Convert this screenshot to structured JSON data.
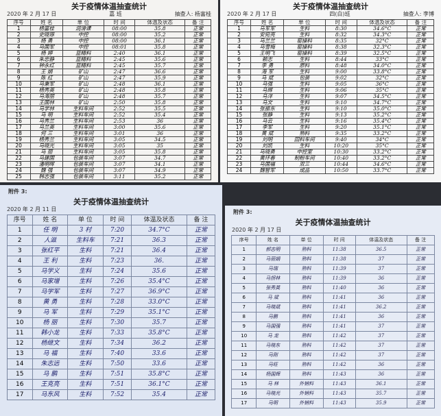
{
  "headers": [
    "序号",
    "姓 名",
    "单 位",
    "时 间",
    "体温及状态",
    "备 注"
  ],
  "sheets": [
    {
      "title": "关于疫情体温抽查统计",
      "date": "2020 年 2 月 17 日",
      "dept": "嘉 班",
      "inspector": "抽查人: 杨富桂",
      "attachment": "",
      "rows": [
        [
          "1",
          "杨富桂",
          "润滑课",
          "08:00",
          "35.8",
          "正常"
        ],
        [
          "2",
          "史晓琢",
          "中控",
          "08:00",
          "35.2",
          "正常"
        ],
        [
          "3",
          "杨 勇",
          "中控",
          "08:00",
          "36.1",
          "正常"
        ],
        [
          "4",
          "马国军",
          "中控",
          "08:01",
          "35.8",
          "正常"
        ],
        [
          "5",
          "杨 婷",
          "蓝精料",
          "2:40",
          "36.1",
          "正常"
        ],
        [
          "6",
          "朱忠静",
          "蓝精料",
          "2:45",
          "35.6",
          "正常"
        ],
        [
          "7",
          "钟永红",
          "蓝精料",
          "2:45",
          "35.7",
          "正常"
        ],
        [
          "8",
          "王 娟",
          "矿山",
          "2:47",
          "36.6",
          "正常"
        ],
        [
          "9",
          "陈 红",
          "矿山",
          "2:47",
          "35.9",
          "正常"
        ],
        [
          "10",
          "马秉军",
          "矿山",
          "2:48",
          "36.1",
          "正常"
        ],
        [
          "11",
          "杨秀英",
          "矿山",
          "2:48",
          "35.8",
          "正常"
        ],
        [
          "12",
          "马海丽",
          "矿山",
          "2:48",
          "35.7",
          "正常"
        ],
        [
          "13",
          "王国林",
          "矿山",
          "2:50",
          "35.8",
          "正常"
        ],
        [
          "14",
          "马学林",
          "生料车间",
          "2:52",
          "35.5",
          "正常"
        ],
        [
          "15",
          "马 明",
          "生料车间",
          "2:52",
          "35.4",
          "正常"
        ],
        [
          "16",
          "马秀兰",
          "生料车间",
          "2:53",
          "36",
          "正常"
        ],
        [
          "17",
          "马兰英",
          "生料车间",
          "3:00",
          "35.6",
          "正常"
        ],
        [
          "18",
          "何 三",
          "生料车间",
          "3:01",
          "36",
          "正常"
        ],
        [
          "19",
          "杨秀兰",
          "生料车间",
          "3:05",
          "34.5",
          "正常"
        ],
        [
          "20",
          "马晓光",
          "生料车间",
          "3:05",
          "35",
          "正常"
        ],
        [
          "21",
          "马 丽",
          "生料车间",
          "3:05",
          "35.8",
          "正常"
        ],
        [
          "22",
          "马建国",
          "包装车间",
          "3:07",
          "34.7",
          "正常"
        ],
        [
          "23",
          "潘明晖",
          "包装车间",
          "3:07",
          "34.1",
          "正常"
        ],
        [
          "24",
          "魏 强",
          "包装车间",
          "3:07",
          "34.9",
          "正常"
        ],
        [
          "25",
          "韩志强",
          "包装车间",
          "3:11",
          "35.2",
          "正常"
        ]
      ]
    },
    {
      "title": "关于疫情体温抽查统计",
      "date": "2020 年 2 月 17 日",
      "dept": "四(白)班",
      "inspector": "抽查人: 李博",
      "attachment": "",
      "rows": [
        [
          "1",
          "马军军",
          "生料",
          "8:30",
          "34.6°C",
          "正常"
        ],
        [
          "2",
          "安宛亮",
          "生料",
          "8:32",
          "34.3°C",
          "正常"
        ],
        [
          "3",
          "马兰兰",
          "窑操料",
          "8:35",
          "32°C",
          "正常"
        ],
        [
          "4",
          "马雪梅",
          "窑操料",
          "8:38",
          "32.3°C",
          "正常"
        ],
        [
          "5",
          "王明飞",
          "窑操料",
          "8:39",
          "32.5°C",
          "正常"
        ],
        [
          "6",
          "赖志",
          "生料",
          "8:44",
          "33°C",
          "正常"
        ],
        [
          "7",
          "李 勇",
          "原料",
          "8:48",
          "34.0°C",
          "正常"
        ],
        [
          "8",
          "海 军",
          "生料",
          "9:00",
          "33.8°C",
          "正常"
        ],
        [
          "9",
          "马 斌",
          "包装",
          "9:02",
          "32°C",
          "正常"
        ],
        [
          "10",
          "马强",
          "生料",
          "9:05",
          "36°C",
          "正常"
        ],
        [
          "11",
          "马辉",
          "生料",
          "9:06",
          "35°C",
          "正常"
        ],
        [
          "12",
          "马洋",
          "生料",
          "9:07",
          "34.5°C",
          "正常"
        ],
        [
          "13",
          "马文",
          "生料",
          "9:10",
          "34.7°C",
          "正常"
        ],
        [
          "14",
          "张振东",
          "生料",
          "9:10",
          "35.0°C",
          "正常"
        ],
        [
          "15",
          "张静",
          "生料",
          "9:13",
          "35.2°C",
          "正常"
        ],
        [
          "16",
          "马云",
          "生料",
          "9:16",
          "35.4°C",
          "正常"
        ],
        [
          "17",
          "李军",
          "生料",
          "9:20",
          "35.1°C",
          "正常"
        ],
        [
          "18",
          "黄 斌",
          "熟料",
          "9:35",
          "33.2°C",
          "正常"
        ],
        [
          "19",
          "刘明",
          "回料车间",
          "9:40",
          "34°C",
          "正常"
        ],
        [
          "20",
          "刘凯",
          "生料",
          "10:20",
          "35°C",
          "正常"
        ],
        [
          "21",
          "马晓勇",
          "中控室",
          "10:30",
          "33.2°C",
          "正常"
        ],
        [
          "22",
          "黄环春",
          "制粉车间",
          "10:40",
          "33.2°C",
          "正常"
        ],
        [
          "23",
          "马国福",
          "双三",
          "10:44",
          "34.6°C",
          "正常"
        ],
        [
          "24",
          "魏智军",
          "成品",
          "10:50",
          "33.7°C",
          "正常"
        ]
      ]
    },
    {
      "title": "关于疫情体温抽查统计",
      "date": "2020 年 2 月 11 日",
      "dept": "",
      "inspector": "",
      "attachment": "附件 3:",
      "rows": [
        [
          "1",
          "任 明",
          "3 村",
          "7:20",
          "34.7°C",
          "正常"
        ],
        [
          "2",
          "人滋",
          "生料车",
          "7:21",
          "36.3",
          "正常"
        ],
        [
          "3",
          "张红平",
          "生料",
          "7:21",
          "36.4",
          "正常"
        ],
        [
          "4",
          "王 利",
          "生料",
          "7:23",
          "36.",
          "正常"
        ],
        [
          "5",
          "马学义",
          "生料",
          "7:24",
          "35.6",
          "正常"
        ],
        [
          "6",
          "马家增",
          "生料",
          "7:26",
          "35.4°C",
          "正常"
        ],
        [
          "7",
          "马学军",
          "生料",
          "7:27",
          "36.9°C",
          "正常"
        ],
        [
          "8",
          "黄 勇",
          "生料",
          "7:28",
          "33.0°C",
          "正常"
        ],
        [
          "9",
          "马 军",
          "生料",
          "7:29",
          "35.1°C",
          "正常"
        ],
        [
          "10",
          "杨 丽",
          "生料",
          "7:30",
          "35.7",
          "正常"
        ],
        [
          "11",
          "韩小龙",
          "生料",
          "7:33",
          "35.8°C",
          "正常"
        ],
        [
          "12",
          "杨继文",
          "生料",
          "7:34",
          "36.2",
          "正常"
        ],
        [
          "13",
          "马 福",
          "生料",
          "7:40",
          "33.6",
          "正常"
        ],
        [
          "14",
          "朱志远",
          "生料",
          "7:50",
          "33.6",
          "正常"
        ],
        [
          "15",
          "马 鹏",
          "生料",
          "7:51",
          "35.8°C",
          "正常"
        ],
        [
          "16",
          "王克亮",
          "生料",
          "7:51",
          "36.1°C",
          "正常"
        ],
        [
          "17",
          "马东风",
          "生料",
          "7:52",
          "35.4",
          "正常"
        ]
      ]
    },
    {
      "title": "关于疫情体温抽查统计",
      "date": "2020 年 2 月 17 日",
      "dept": "",
      "inspector": "",
      "attachment": "附件 3:",
      "rows": [
        [
          "1",
          "郝志明",
          "熟料",
          "11:38",
          "36.5",
          "正常"
        ],
        [
          "2",
          "马丽娟",
          "熟料",
          "11:38",
          "37",
          "正常"
        ],
        [
          "3",
          "马瑞",
          "熟料",
          "11:39",
          "37",
          "正常"
        ],
        [
          "4",
          "马拐林",
          "熟料",
          "11:39",
          "36",
          "正常"
        ],
        [
          "5",
          "张秀英",
          "熟料",
          "11:40",
          "36",
          "正常"
        ],
        [
          "6",
          "马 斌",
          "熟料",
          "11:41",
          "36",
          "正常"
        ],
        [
          "7",
          "马晓斌",
          "熟料",
          "11:41",
          "36.2",
          "正常"
        ],
        [
          "8",
          "马鹏",
          "熟料",
          "11:41",
          "36",
          "正常"
        ],
        [
          "9",
          "马国强",
          "熟料",
          "11:41",
          "37",
          "正常"
        ],
        [
          "10",
          "马 龙",
          "熟料",
          "11:42",
          "37",
          "正常"
        ],
        [
          "11",
          "马晓东",
          "熟料",
          "11:42",
          "37",
          "正常"
        ],
        [
          "12",
          "马刚",
          "熟料",
          "11:42",
          "37",
          "正常"
        ],
        [
          "13",
          "马旺",
          "熟料",
          "11:42",
          "36",
          "正常"
        ],
        [
          "14",
          "杨国辉",
          "熟料",
          "11:43",
          "36",
          "正常"
        ],
        [
          "15",
          "马 林",
          "外销料",
          "11:43",
          "36.1",
          "正常"
        ],
        [
          "16",
          "马晓光",
          "外销料",
          "11:43",
          "35.7",
          "正常"
        ],
        [
          "17",
          "马明",
          "外销料",
          "11:43",
          "35.9",
          "正常"
        ]
      ]
    }
  ]
}
